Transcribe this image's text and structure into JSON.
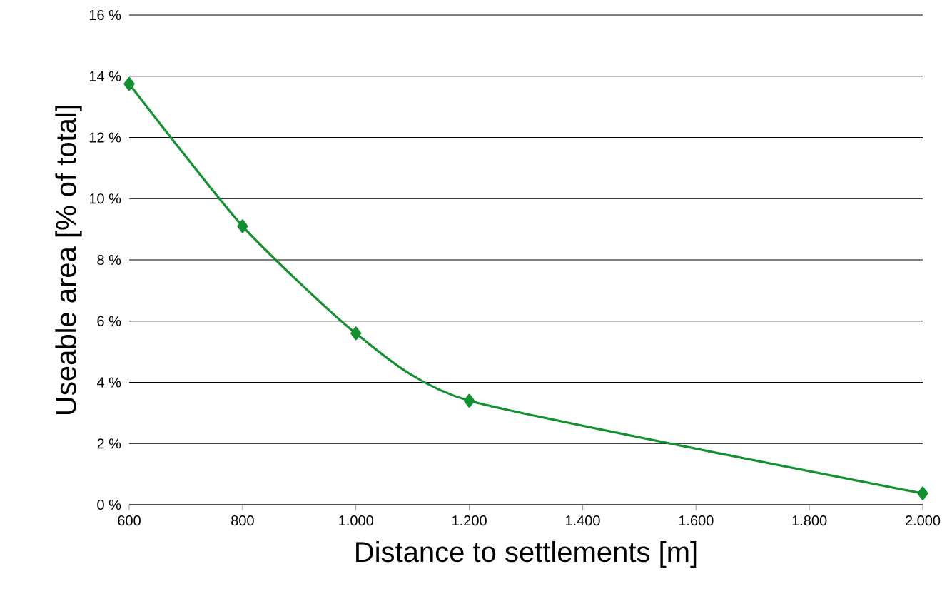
{
  "chart_data": {
    "type": "line",
    "xlabel": "Distance to settlements [m]",
    "ylabel": "Useable area [% of total]",
    "x": [
      600,
      800,
      1000,
      1200,
      2000
    ],
    "series": [
      {
        "color": "#13902f",
        "values": [
          13.75,
          9.1,
          5.6,
          3.4,
          0.37
        ]
      }
    ],
    "xlim": [
      600,
      2000
    ],
    "ylim": [
      0,
      16
    ],
    "xticks": [
      600,
      800,
      {
        "value": 1000,
        "label": "1.000"
      },
      {
        "value": 1200,
        "label": "1.200"
      },
      {
        "value": 1400,
        "label": "1.400"
      },
      {
        "value": 1600,
        "label": "1.600"
      },
      {
        "value": 1800,
        "label": "1.800"
      },
      {
        "value": 2000,
        "label": "2.000"
      }
    ],
    "yticks": [
      {
        "value": 0,
        "label": "0 %"
      },
      {
        "value": 2,
        "label": "2 %"
      },
      {
        "value": 4,
        "label": "4 %"
      },
      {
        "value": 6,
        "label": "6 %"
      },
      {
        "value": 8,
        "label": "8 %"
      },
      {
        "value": 10,
        "label": "10 %"
      },
      {
        "value": 12,
        "label": "12 %"
      },
      {
        "value": 14,
        "label": "14 %"
      },
      {
        "value": 16,
        "label": "16 %"
      }
    ],
    "grid": "y",
    "marker": "diamond",
    "line_style": "solid"
  }
}
